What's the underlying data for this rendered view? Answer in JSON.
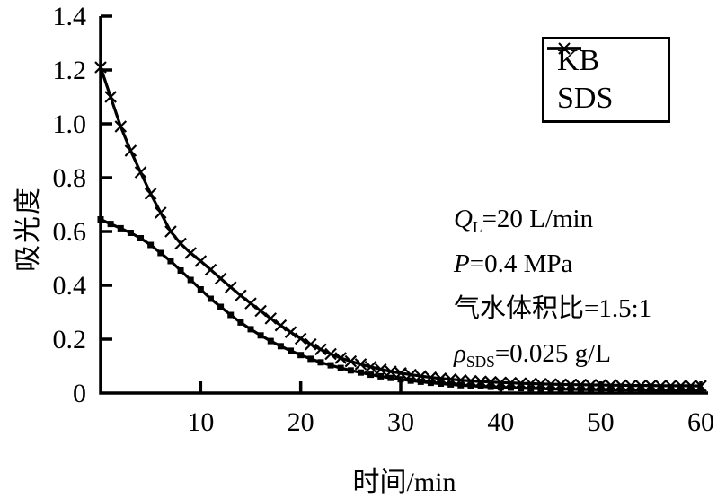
{
  "chart_data": {
    "type": "line",
    "title": "",
    "xlabel": "时间/min",
    "ylabel": "吸光度",
    "x_start": 0,
    "x_step": 1,
    "xlim": [
      0,
      60
    ],
    "ylim": [
      0,
      1.4
    ],
    "x_ticks": [
      10,
      20,
      30,
      40,
      50,
      60
    ],
    "y_ticks": [
      "0",
      "0.2",
      "0.4",
      "0.6",
      "0.8",
      "1.0",
      "1.2",
      "1.4"
    ],
    "grid": false,
    "legend_position": "top-right",
    "series": [
      {
        "name": "KB",
        "marker": "square",
        "values": [
          0.645,
          0.628,
          0.612,
          0.595,
          0.575,
          0.55,
          0.52,
          0.49,
          0.455,
          0.42,
          0.385,
          0.35,
          0.32,
          0.29,
          0.262,
          0.237,
          0.214,
          0.193,
          0.174,
          0.157,
          0.141,
          0.127,
          0.114,
          0.103,
          0.093,
          0.084,
          0.076,
          0.068,
          0.062,
          0.056,
          0.051,
          0.046,
          0.042,
          0.038,
          0.035,
          0.032,
          0.029,
          0.027,
          0.025,
          0.023,
          0.021,
          0.02,
          0.018,
          0.017,
          0.016,
          0.015,
          0.014,
          0.014,
          0.013,
          0.013,
          0.012,
          0.012,
          0.011,
          0.011,
          0.011,
          0.01,
          0.01,
          0.01,
          0.01,
          0.01,
          0.01
        ]
      },
      {
        "name": "SDS",
        "marker": "x",
        "values": [
          1.21,
          1.1,
          0.99,
          0.9,
          0.82,
          0.74,
          0.67,
          0.6,
          0.555,
          0.52,
          0.49,
          0.458,
          0.425,
          0.393,
          0.362,
          0.333,
          0.305,
          0.277,
          0.251,
          0.226,
          0.202,
          0.181,
          0.162,
          0.145,
          0.13,
          0.118,
          0.107,
          0.097,
          0.088,
          0.08,
          0.074,
          0.068,
          0.063,
          0.058,
          0.054,
          0.051,
          0.048,
          0.045,
          0.043,
          0.041,
          0.039,
          0.038,
          0.036,
          0.035,
          0.034,
          0.033,
          0.032,
          0.031,
          0.031,
          0.03,
          0.03,
          0.029,
          0.029,
          0.028,
          0.028,
          0.028,
          0.027,
          0.027,
          0.027,
          0.027,
          0.026
        ]
      }
    ]
  },
  "annotations": [
    {
      "symbol": "Q",
      "sub": "L",
      "rest": "=20 L/min"
    },
    {
      "symbol": "P",
      "sub": "",
      "rest": "=0.4 MPa"
    },
    {
      "symbol": "",
      "sub": "",
      "rest": "气水体积比=1.5:1"
    },
    {
      "symbol": "ρ",
      "sub": "SDS",
      "rest": "=0.025 g/L"
    }
  ],
  "colors": {
    "line": "#000000",
    "background": "#ffffff",
    "text": "#000000"
  }
}
